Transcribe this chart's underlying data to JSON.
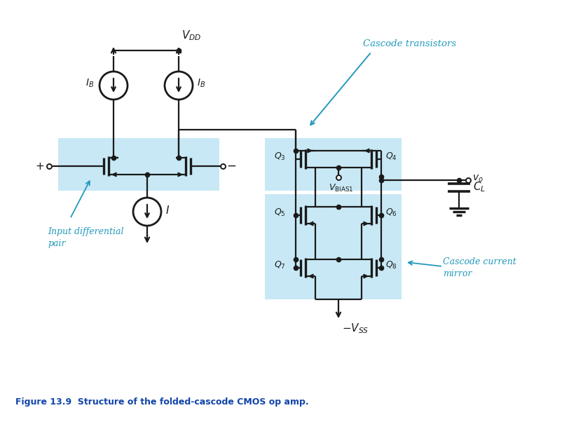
{
  "bg_color": "#ffffff",
  "line_color": "#1a1a1a",
  "highlight_color": "#87CEEB",
  "highlight_alpha": 0.45,
  "cyan_color": "#2299bb",
  "navy_color": "#1144aa",
  "fig_caption": "Figure 13.9  Structure of the folded-cascode CMOS op amp.",
  "vdd_label": "$V_{DD}$",
  "vss_label": "$-V_{SS}$",
  "ib_label": "$I_B$",
  "i_label": "$I$",
  "vbias1_label": "$V_{\\mathrm{BIAS1}}$",
  "vo_label": "$v_o$",
  "cl_label": "$C_L$",
  "cascode_transistors_label": "Cascode transistors",
  "cascode_current_mirror_label": "Cascode current\nmirror",
  "input_diff_pair_label": "Input differential\npair",
  "plus_label": "+",
  "minus_label": "−"
}
